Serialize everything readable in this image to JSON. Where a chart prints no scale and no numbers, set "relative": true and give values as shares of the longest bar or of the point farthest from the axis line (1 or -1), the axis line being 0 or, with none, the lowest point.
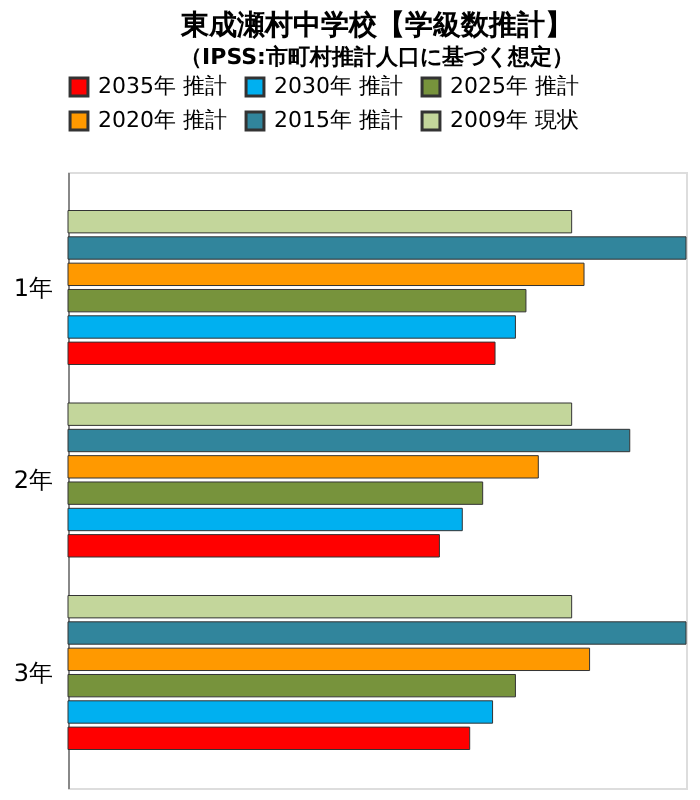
{
  "chart_data": {
    "type": "bar",
    "orientation": "horizontal",
    "relative": true,
    "title": "東成瀬村中学校【学級数推計】",
    "subtitle": "（IPSS:市町村推計人口に基づく想定）",
    "categories": [
      "1年",
      "2年",
      "3年"
    ],
    "series": [
      {
        "name": "2035年 推計",
        "color": "#ff0000",
        "values": [
          0.691,
          0.601,
          0.65
        ]
      },
      {
        "name": "2030年 推計",
        "color": "#00b0f0",
        "values": [
          0.724,
          0.638,
          0.687
        ]
      },
      {
        "name": "2025年 推計",
        "color": "#77933c",
        "values": [
          0.741,
          0.671,
          0.724
        ]
      },
      {
        "name": "2020年 推計",
        "color": "#ff9900",
        "values": [
          0.835,
          0.761,
          0.844
        ]
      },
      {
        "name": "2015年 推計",
        "color": "#31859c",
        "values": [
          1,
          0.909,
          1
        ]
      },
      {
        "name": "2009年 現状",
        "color": "#c3d69b",
        "values": [
          0.815,
          0.815,
          0.815
        ]
      }
    ],
    "legend": "top"
  }
}
